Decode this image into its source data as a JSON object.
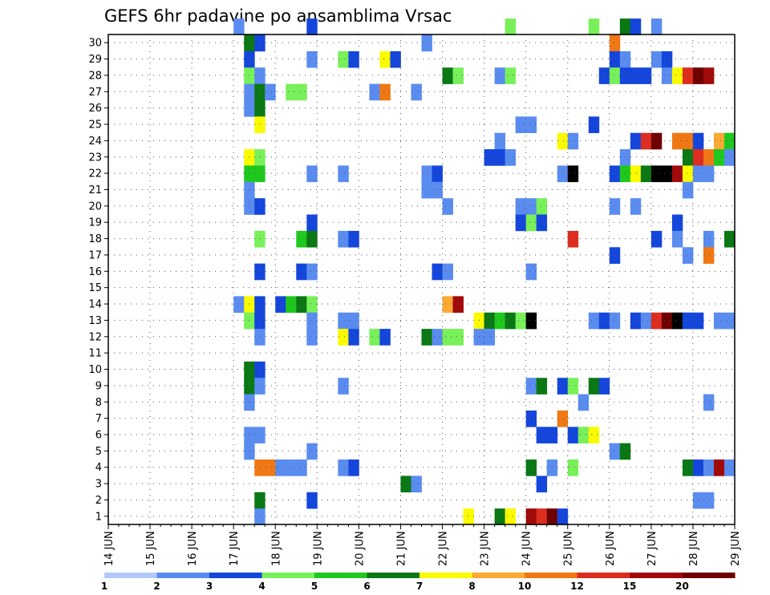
{
  "chart_data": {
    "type": "heatmap",
    "title": "GEFS 6hr padavine po ansamblima Vrsac",
    "x_tick_labels": [
      "14 JUN",
      "15 JUN",
      "16 JUN",
      "17 JUN",
      "18 JUN",
      "19 JUN",
      "20 JUN",
      "21 JUN",
      "22 JUN",
      "23 JUN",
      "24 JUN",
      "25 JUN",
      "26 JUN",
      "27 JUN",
      "28 JUN",
      "29 JUN"
    ],
    "y_tick_labels": [
      "1",
      "2",
      "3",
      "4",
      "5",
      "6",
      "7",
      "8",
      "9",
      "10",
      "11",
      "12",
      "13",
      "14",
      "15",
      "16",
      "17",
      "18",
      "19",
      "20",
      "21",
      "22",
      "23",
      "24",
      "25",
      "26",
      "27",
      "28",
      "29",
      "30"
    ],
    "xlim": [
      0,
      60
    ],
    "ylim": [
      0,
      30
    ],
    "grid": true,
    "legend": {
      "levels": [
        "1",
        "2",
        "3",
        "4",
        "5",
        "6",
        "7",
        "8",
        "10",
        "12",
        "15",
        "20"
      ],
      "colors": [
        "#b4c8fa",
        "#5a8cf0",
        "#1446dc",
        "#78f05a",
        "#1ec81e",
        "#0a7814",
        "#fafa00",
        "#faaa32",
        "#f07814",
        "#dc2d1e",
        "#a00a0a",
        "#6e0000"
      ]
    },
    "cells": [
      [
        12,
        30,
        1
      ],
      [
        19,
        30,
        2
      ],
      [
        38,
        30,
        3
      ],
      [
        46,
        30,
        3
      ],
      [
        49,
        30,
        5
      ],
      [
        50,
        30,
        2
      ],
      [
        52,
        30,
        1
      ],
      [
        13,
        29,
        5
      ],
      [
        14,
        29,
        2
      ],
      [
        30,
        29,
        1
      ],
      [
        48,
        29,
        8
      ],
      [
        13,
        28,
        2
      ],
      [
        19,
        28,
        1
      ],
      [
        22,
        28,
        3
      ],
      [
        23,
        28,
        2
      ],
      [
        26,
        28,
        6
      ],
      [
        27,
        28,
        2
      ],
      [
        48,
        28,
        2
      ],
      [
        49,
        28,
        1
      ],
      [
        52,
        28,
        1
      ],
      [
        53,
        28,
        2
      ],
      [
        13,
        27,
        3
      ],
      [
        14,
        27,
        1
      ],
      [
        32,
        27,
        5
      ],
      [
        33,
        27,
        3
      ],
      [
        37,
        27,
        1
      ],
      [
        38,
        27,
        3
      ],
      [
        47,
        27,
        2
      ],
      [
        48,
        27,
        3
      ],
      [
        49,
        27,
        2
      ],
      [
        50,
        27,
        2
      ],
      [
        51,
        27,
        2
      ],
      [
        53,
        27,
        1
      ],
      [
        54,
        27,
        6
      ],
      [
        55,
        27,
        9
      ],
      [
        56,
        27,
        11
      ],
      [
        57,
        27,
        10
      ],
      [
        13,
        26,
        1
      ],
      [
        14,
        26,
        5
      ],
      [
        15,
        26,
        1
      ],
      [
        17,
        26,
        3
      ],
      [
        18,
        26,
        3
      ],
      [
        25,
        26,
        1
      ],
      [
        26,
        26,
        8
      ],
      [
        29,
        26,
        1
      ],
      [
        13,
        25,
        1
      ],
      [
        14,
        25,
        5
      ],
      [
        14,
        24,
        6
      ],
      [
        39,
        24,
        1
      ],
      [
        40,
        24,
        1
      ],
      [
        46,
        24,
        2
      ],
      [
        37,
        23,
        1
      ],
      [
        43,
        23,
        6
      ],
      [
        44,
        23,
        1
      ],
      [
        50,
        23,
        2
      ],
      [
        51,
        23,
        9
      ],
      [
        52,
        23,
        11
      ],
      [
        54,
        23,
        8
      ],
      [
        55,
        23,
        8
      ],
      [
        56,
        23,
        2
      ],
      [
        58,
        23,
        7
      ],
      [
        59,
        23,
        4
      ],
      [
        13,
        22,
        6
      ],
      [
        14,
        22,
        3
      ],
      [
        36,
        22,
        2
      ],
      [
        37,
        22,
        2
      ],
      [
        38,
        22,
        1
      ],
      [
        49,
        22,
        1
      ],
      [
        55,
        22,
        5
      ],
      [
        56,
        22,
        9
      ],
      [
        57,
        22,
        8
      ],
      [
        58,
        22,
        4
      ],
      [
        59,
        22,
        1
      ],
      [
        13,
        21,
        4
      ],
      [
        14,
        21,
        4
      ],
      [
        19,
        21,
        1
      ],
      [
        22,
        21,
        1
      ],
      [
        30,
        21,
        1
      ],
      [
        31,
        21,
        2
      ],
      [
        43,
        21,
        1
      ],
      [
        44,
        21,
        12
      ],
      [
        48,
        21,
        2
      ],
      [
        49,
        21,
        4
      ],
      [
        50,
        21,
        6
      ],
      [
        51,
        21,
        5
      ],
      [
        52,
        21,
        12
      ],
      [
        53,
        21,
        12
      ],
      [
        54,
        21,
        10
      ],
      [
        55,
        21,
        6
      ],
      [
        56,
        21,
        1
      ],
      [
        57,
        21,
        1
      ],
      [
        13,
        20,
        1
      ],
      [
        30,
        20,
        1
      ],
      [
        31,
        20,
        1
      ],
      [
        55,
        20,
        1
      ],
      [
        13,
        19,
        1
      ],
      [
        14,
        19,
        2
      ],
      [
        32,
        19,
        1
      ],
      [
        39,
        19,
        1
      ],
      [
        40,
        19,
        1
      ],
      [
        41,
        19,
        3
      ],
      [
        48,
        19,
        1
      ],
      [
        50,
        19,
        1
      ],
      [
        19,
        18,
        2
      ],
      [
        39,
        18,
        2
      ],
      [
        40,
        18,
        3
      ],
      [
        41,
        18,
        2
      ],
      [
        54,
        18,
        2
      ],
      [
        14,
        17,
        3
      ],
      [
        18,
        17,
        4
      ],
      [
        19,
        17,
        5
      ],
      [
        22,
        17,
        1
      ],
      [
        23,
        17,
        2
      ],
      [
        44,
        17,
        9
      ],
      [
        52,
        17,
        2
      ],
      [
        54,
        17,
        1
      ],
      [
        57,
        17,
        1
      ],
      [
        59,
        17,
        5
      ],
      [
        48,
        16,
        2
      ],
      [
        55,
        16,
        1
      ],
      [
        57,
        16,
        8
      ],
      [
        14,
        15,
        2
      ],
      [
        18,
        15,
        2
      ],
      [
        19,
        15,
        1
      ],
      [
        31,
        15,
        2
      ],
      [
        32,
        15,
        1
      ],
      [
        40,
        15,
        1
      ],
      [
        12,
        13,
        1
      ],
      [
        13,
        13,
        6
      ],
      [
        14,
        13,
        2
      ],
      [
        16,
        13,
        2
      ],
      [
        17,
        13,
        4
      ],
      [
        18,
        13,
        5
      ],
      [
        19,
        13,
        3
      ],
      [
        32,
        13,
        7
      ],
      [
        33,
        13,
        10
      ],
      [
        13,
        12,
        3
      ],
      [
        14,
        12,
        2
      ],
      [
        19,
        12,
        1
      ],
      [
        22,
        12,
        1
      ],
      [
        23,
        12,
        1
      ],
      [
        35,
        12,
        6
      ],
      [
        36,
        12,
        5
      ],
      [
        37,
        12,
        4
      ],
      [
        38,
        12,
        5
      ],
      [
        39,
        12,
        3
      ],
      [
        40,
        12,
        12
      ],
      [
        46,
        12,
        1
      ],
      [
        47,
        12,
        2
      ],
      [
        48,
        12,
        1
      ],
      [
        50,
        12,
        2
      ],
      [
        51,
        12,
        1
      ],
      [
        52,
        12,
        9
      ],
      [
        53,
        12,
        11
      ],
      [
        54,
        12,
        12
      ],
      [
        55,
        12,
        2
      ],
      [
        56,
        12,
        2
      ],
      [
        58,
        12,
        1
      ],
      [
        59,
        12,
        1
      ],
      [
        14,
        11,
        1
      ],
      [
        19,
        11,
        1
      ],
      [
        22,
        11,
        6
      ],
      [
        23,
        11,
        2
      ],
      [
        25,
        11,
        3
      ],
      [
        26,
        11,
        2
      ],
      [
        30,
        11,
        5
      ],
      [
        31,
        11,
        1
      ],
      [
        32,
        11,
        3
      ],
      [
        33,
        11,
        3
      ],
      [
        35,
        11,
        1
      ],
      [
        36,
        11,
        1
      ],
      [
        13,
        9,
        5
      ],
      [
        14,
        9,
        2
      ],
      [
        13,
        8,
        5
      ],
      [
        14,
        8,
        1
      ],
      [
        22,
        8,
        1
      ],
      [
        40,
        8,
        1
      ],
      [
        41,
        8,
        5
      ],
      [
        43,
        8,
        2
      ],
      [
        44,
        8,
        3
      ],
      [
        46,
        8,
        5
      ],
      [
        47,
        8,
        2
      ],
      [
        13,
        7,
        1
      ],
      [
        45,
        7,
        1
      ],
      [
        57,
        7,
        1
      ],
      [
        40,
        6,
        2
      ],
      [
        43,
        6,
        8
      ],
      [
        13,
        5,
        1
      ],
      [
        14,
        5,
        1
      ],
      [
        41,
        5,
        2
      ],
      [
        42,
        5,
        2
      ],
      [
        44,
        5,
        2
      ],
      [
        45,
        5,
        3
      ],
      [
        46,
        5,
        6
      ],
      [
        13,
        4,
        1
      ],
      [
        19,
        4,
        1
      ],
      [
        48,
        4,
        1
      ],
      [
        49,
        4,
        5
      ],
      [
        14,
        3,
        8
      ],
      [
        15,
        3,
        8
      ],
      [
        16,
        3,
        1
      ],
      [
        17,
        3,
        1
      ],
      [
        18,
        3,
        1
      ],
      [
        22,
        3,
        1
      ],
      [
        23,
        3,
        2
      ],
      [
        40,
        3,
        5
      ],
      [
        42,
        3,
        1
      ],
      [
        44,
        3,
        3
      ],
      [
        55,
        3,
        5
      ],
      [
        56,
        3,
        2
      ],
      [
        57,
        3,
        1
      ],
      [
        58,
        3,
        10
      ],
      [
        59,
        3,
        1
      ],
      [
        41,
        2,
        2
      ],
      [
        28,
        2,
        5
      ],
      [
        29,
        2,
        1
      ],
      [
        14,
        1,
        5
      ],
      [
        19,
        1,
        2
      ],
      [
        56,
        1,
        1
      ],
      [
        57,
        1,
        1
      ],
      [
        14,
        0,
        1
      ],
      [
        34,
        0,
        6
      ],
      [
        37,
        0,
        5
      ],
      [
        38,
        0,
        6
      ],
      [
        40,
        0,
        10
      ],
      [
        41,
        0,
        9
      ],
      [
        42,
        0,
        11
      ],
      [
        43,
        0,
        2
      ]
    ]
  }
}
